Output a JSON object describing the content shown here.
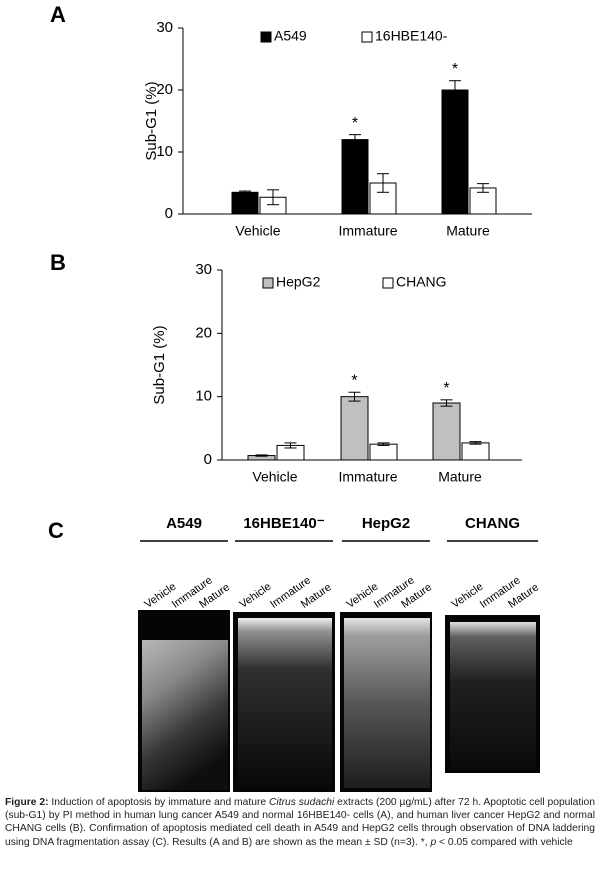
{
  "chart_data": [
    {
      "type": "bar",
      "panel": "A",
      "y_label": "Sub-G1 (%)",
      "categories": [
        "Vehicle",
        "Immature",
        "Mature"
      ],
      "series": [
        {
          "name": "A549",
          "color": "#000000",
          "values": [
            3.5,
            12,
            20
          ],
          "errors": [
            0.2,
            0.8,
            1.5
          ]
        },
        {
          "name": "16HBE140-",
          "color": "#ffffff",
          "values": [
            2.7,
            5,
            4.2
          ],
          "errors": [
            1.2,
            1.5,
            0.7
          ]
        }
      ],
      "annotations": [
        {
          "text": "*",
          "category": "Immature"
        },
        {
          "text": "*",
          "category": "Mature"
        }
      ],
      "ylim": [
        0,
        30
      ],
      "yticks": [
        0,
        10,
        20,
        30
      ],
      "grid": false,
      "legend": "top"
    },
    {
      "type": "bar",
      "panel": "B",
      "y_label": "Sub-G1 (%)",
      "categories": [
        "Vehicle",
        "Immature",
        "Mature"
      ],
      "series": [
        {
          "name": "HepG2",
          "color": "#c0c0c0",
          "values": [
            0.7,
            10,
            9
          ],
          "errors": [
            0.1,
            0.7,
            0.5
          ]
        },
        {
          "name": "CHANG",
          "color": "#ffffff",
          "values": [
            2.3,
            2.5,
            2.7
          ],
          "errors": [
            0.4,
            0.2,
            0.2
          ]
        }
      ],
      "annotations": [
        {
          "text": "*",
          "category": "Immature"
        },
        {
          "text": "*",
          "category": "Mature"
        }
      ],
      "ylim": [
        0,
        30
      ],
      "yticks": [
        0,
        10,
        20,
        30
      ],
      "grid": false,
      "legend": "top"
    }
  ],
  "gel": {
    "panel": "C",
    "groups": [
      {
        "name": "A549",
        "lanes": [
          "Vehicle",
          "Immature",
          "Mature"
        ]
      },
      {
        "name": "16HBE140⁻",
        "lanes": [
          "Vehicle",
          "Immature",
          "Mature"
        ]
      },
      {
        "name": "HepG2",
        "lanes": [
          "Vehicle",
          "Immature",
          "Mature"
        ]
      },
      {
        "name": "CHANG",
        "lanes": [
          "Vehicle",
          "Immature",
          "Mature"
        ]
      }
    ]
  },
  "caption": {
    "label": "Figure 2:",
    "text_1": " Induction of apoptosis by immature and mature ",
    "species": "Citrus sudachi",
    "text_2": " extracts (200 µg/mL) after 72 h. Apoptotic cell population (sub-G1) by PI method in human lung cancer A549 and normal 16HBE140- cells (A), and human liver cancer HepG2 and normal CHANG cells (B). Confirmation of apoptosis mediated cell death in A549 and HepG2 cells through observation of DNA laddering using DNA fragmentation assay (C). Results (A and B) are shown as the mean ± SD (n=3). *, ",
    "p": "p",
    "text_3": " < 0.05 compared with vehicle"
  }
}
